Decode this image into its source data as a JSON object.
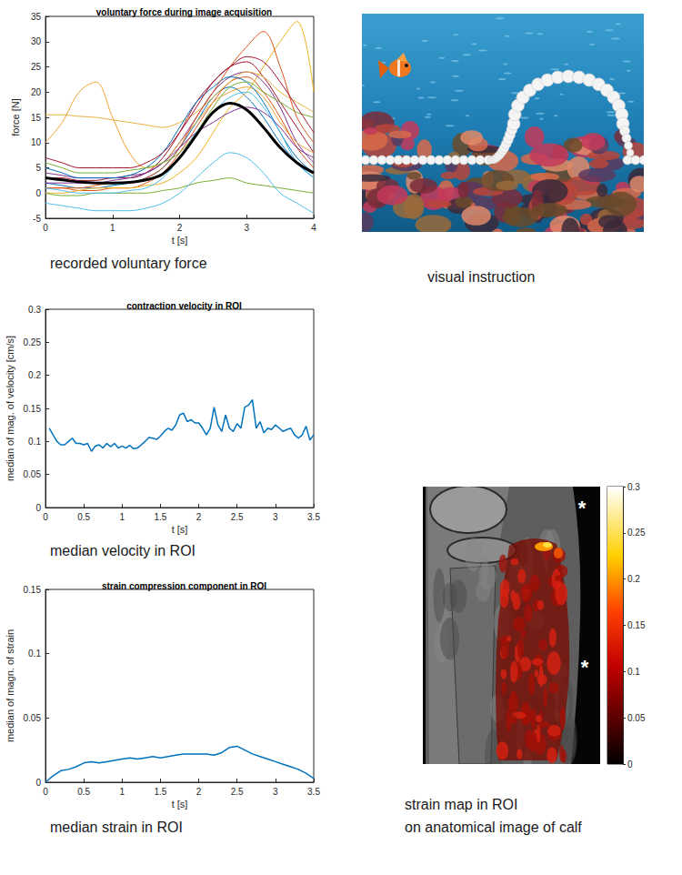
{
  "chart_data": [
    {
      "type": "line",
      "title": "voluntary force during image acquisition",
      "caption": "recorded voluntary force",
      "x_label": "t [s]",
      "y_label": "force [N]",
      "xlim": [
        0,
        4
      ],
      "xticks": [
        0,
        1,
        2,
        3,
        4
      ],
      "ylim": [
        -5,
        35
      ],
      "yticks": [
        -5,
        0,
        5,
        10,
        15,
        20,
        25,
        30,
        35
      ],
      "grid": false,
      "x": [
        0,
        0.25,
        0.5,
        0.75,
        1,
        1.25,
        1.5,
        1.75,
        2,
        2.25,
        2.5,
        2.75,
        3,
        3.25,
        3.5,
        3.75,
        4
      ],
      "series": [
        {
          "color": "#0072BD",
          "values": [
            2,
            1.5,
            1,
            1,
            1.5,
            2,
            3,
            5,
            9,
            14,
            19,
            21,
            19,
            15,
            10,
            6,
            3
          ]
        },
        {
          "color": "#D95319",
          "values": [
            1,
            1,
            0.5,
            0.5,
            1,
            1,
            2,
            4,
            8,
            13,
            18,
            22,
            23,
            20,
            15,
            9,
            5
          ]
        },
        {
          "color": "#EDB120",
          "values": [
            0,
            0,
            0.5,
            1,
            1,
            1,
            1.5,
            2,
            4,
            7,
            12,
            17,
            20,
            25,
            30,
            34,
            20
          ]
        },
        {
          "color": "#7E2F8E",
          "values": [
            4,
            3.5,
            3,
            3,
            3,
            3.5,
            4,
            6,
            10,
            15,
            20,
            23,
            24,
            22,
            17,
            10,
            6
          ]
        },
        {
          "color": "#77AC30",
          "values": [
            0,
            -0.5,
            -0.5,
            0,
            0,
            0,
            0,
            0.5,
            1,
            2,
            2.5,
            3,
            2,
            1.5,
            1,
            0.5,
            0
          ]
        },
        {
          "color": "#4DBEEE",
          "values": [
            -2,
            -2.5,
            -3,
            -3.5,
            -3.5,
            -3.5,
            -3,
            -2,
            0,
            3,
            6,
            8,
            7,
            4,
            0,
            -2,
            -4
          ]
        },
        {
          "color": "#A2142F",
          "values": [
            3,
            3,
            2.5,
            2.5,
            3,
            3,
            4,
            7,
            12,
            18,
            22,
            25,
            26,
            23,
            18,
            13,
            8
          ]
        },
        {
          "color": "#F0A030",
          "values": [
            10,
            14,
            20,
            22,
            15,
            8,
            5,
            6,
            10,
            14,
            18,
            20,
            21,
            19,
            14,
            10,
            8
          ]
        },
        {
          "color": "#E8B040",
          "values": [
            15.5,
            15.5,
            15.2,
            15,
            14.5,
            14,
            13.5,
            13,
            14,
            16,
            19,
            22,
            24,
            23,
            20,
            18,
            16
          ]
        },
        {
          "color": "#0072BD",
          "values": [
            5,
            4,
            3,
            3,
            3,
            3.5,
            5,
            8,
            13,
            18,
            21,
            23,
            22,
            18,
            12,
            7,
            4
          ]
        },
        {
          "color": "#D95319",
          "values": [
            1,
            1,
            1,
            1.5,
            2,
            2,
            3,
            5,
            9,
            15,
            20,
            25,
            29,
            32,
            25,
            15,
            10
          ]
        },
        {
          "color": "#7E2F8E",
          "values": [
            2,
            2,
            2,
            2,
            2.5,
            3,
            4,
            6,
            9,
            12,
            14,
            16,
            17,
            16,
            13,
            9,
            7
          ]
        },
        {
          "color": "#77AC30",
          "values": [
            6,
            5,
            4,
            4,
            4,
            4.5,
            5,
            6,
            8,
            12,
            17,
            21,
            22,
            20,
            18,
            16,
            15
          ]
        },
        {
          "color": "#4DBEEE",
          "values": [
            1,
            0.5,
            0,
            0,
            0,
            0.5,
            1,
            3,
            7,
            12,
            16,
            19,
            20,
            17,
            12,
            6,
            3
          ]
        },
        {
          "color": "#A2142F",
          "values": [
            7,
            6,
            5,
            5,
            5,
            5,
            6,
            8,
            12,
            17,
            22,
            25,
            27,
            26,
            22,
            17,
            12
          ]
        },
        {
          "color": "#000000",
          "line_style": "thick",
          "values": [
            3,
            2.6,
            2.2,
            2,
            2,
            2.1,
            2.6,
            3.8,
            7,
            11.5,
            16,
            17.8,
            16.5,
            13,
            9,
            6,
            4
          ]
        }
      ]
    },
    {
      "type": "line",
      "title": "contraction velocity in ROI",
      "caption": "median velocity in ROI",
      "x_label": "t [s]",
      "y_label": "median of mag. of velocity [cm/s]",
      "xlim": [
        0,
        3.5
      ],
      "xticks": [
        0,
        0.5,
        1,
        1.5,
        2,
        2.5,
        3,
        3.5
      ],
      "ylim": [
        0,
        0.3
      ],
      "yticks": [
        0,
        0.05,
        0.1,
        0.15,
        0.2,
        0.25,
        0.3
      ],
      "grid": false,
      "x": [
        0.05,
        0.1,
        0.15,
        0.2,
        0.25,
        0.3,
        0.35,
        0.4,
        0.45,
        0.5,
        0.55,
        0.6,
        0.65,
        0.7,
        0.75,
        0.8,
        0.85,
        0.9,
        0.95,
        1,
        1.05,
        1.1,
        1.15,
        1.2,
        1.25,
        1.3,
        1.35,
        1.4,
        1.45,
        1.5,
        1.55,
        1.6,
        1.65,
        1.7,
        1.75,
        1.8,
        1.85,
        1.9,
        1.95,
        2,
        2.05,
        2.1,
        2.15,
        2.2,
        2.25,
        2.3,
        2.35,
        2.4,
        2.45,
        2.5,
        2.55,
        2.6,
        2.65,
        2.7,
        2.75,
        2.8,
        2.85,
        2.9,
        2.95,
        3,
        3.05,
        3.1,
        3.15,
        3.2,
        3.25,
        3.3,
        3.35,
        3.4,
        3.45,
        3.5
      ],
      "series": [
        {
          "color": "#0072BD",
          "values": [
            0.12,
            0.11,
            0.1,
            0.095,
            0.095,
            0.1,
            0.105,
            0.097,
            0.097,
            0.095,
            0.097,
            0.085,
            0.093,
            0.095,
            0.09,
            0.097,
            0.092,
            0.097,
            0.09,
            0.093,
            0.09,
            0.094,
            0.089,
            0.09,
            0.095,
            0.1,
            0.106,
            0.105,
            0.103,
            0.108,
            0.115,
            0.12,
            0.117,
            0.125,
            0.14,
            0.143,
            0.13,
            0.133,
            0.128,
            0.128,
            0.12,
            0.11,
            0.12,
            0.152,
            0.125,
            0.115,
            0.14,
            0.12,
            0.115,
            0.127,
            0.12,
            0.152,
            0.155,
            0.163,
            0.12,
            0.13,
            0.113,
            0.12,
            0.118,
            0.125,
            0.12,
            0.115,
            0.118,
            0.12,
            0.11,
            0.105,
            0.11,
            0.123,
            0.102,
            0.11
          ]
        }
      ]
    },
    {
      "type": "line",
      "title": "strain compression component in ROI",
      "caption": "median strain in ROI",
      "x_label": "t [s]",
      "y_label": "median of magn. of strain",
      "xlim": [
        0,
        3.5
      ],
      "xticks": [
        0,
        0.5,
        1,
        1.5,
        2,
        2.5,
        3,
        3.5
      ],
      "ylim": [
        0,
        0.15
      ],
      "yticks": [
        0,
        0.05,
        0.1,
        0.15
      ],
      "grid": false,
      "x": [
        0,
        0.1,
        0.2,
        0.3,
        0.4,
        0.5,
        0.6,
        0.7,
        0.8,
        0.9,
        1,
        1.1,
        1.2,
        1.3,
        1.4,
        1.5,
        1.6,
        1.7,
        1.8,
        1.9,
        2,
        2.1,
        2.2,
        2.3,
        2.4,
        2.5,
        2.6,
        2.7,
        2.8,
        2.9,
        3,
        3.1,
        3.2,
        3.3,
        3.4,
        3.5
      ],
      "series": [
        {
          "color": "#0072BD",
          "values": [
            0,
            0.005,
            0.009,
            0.01,
            0.012,
            0.015,
            0.016,
            0.015,
            0.016,
            0.017,
            0.018,
            0.019,
            0.018,
            0.019,
            0.02,
            0.019,
            0.02,
            0.021,
            0.022,
            0.022,
            0.022,
            0.022,
            0.021,
            0.023,
            0.027,
            0.028,
            0.025,
            0.022,
            0.02,
            0.018,
            0.016,
            0.014,
            0.012,
            0.01,
            0.007,
            0.003
          ]
        }
      ]
    }
  ],
  "visual_instruction": {
    "caption": "visual instruction"
  },
  "strain_map": {
    "caption": [
      "strain map in ROI",
      "on anatomical image of calf"
    ],
    "annotations": [
      "*",
      "*"
    ],
    "colorbar": {
      "ylim": [
        0,
        0.3
      ],
      "yticks": [
        0,
        0.05,
        0.1,
        0.15,
        0.2,
        0.25,
        0.3
      ]
    }
  }
}
